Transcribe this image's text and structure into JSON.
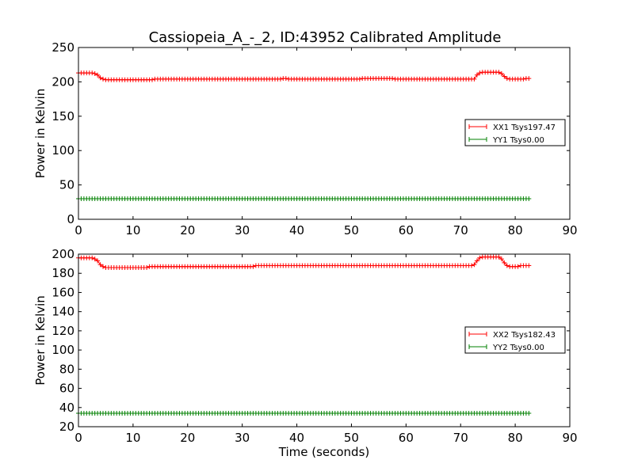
{
  "figure": {
    "title": "Cassiopeia_A_-_2, ID:43952 Calibrated Amplitude"
  },
  "chart_data": [
    {
      "type": "line",
      "title": "Cassiopeia_A_-_2, ID:43952 Calibrated Amplitude",
      "xlabel": "",
      "ylabel": "Power in Kelvin",
      "xlim": [
        0,
        90
      ],
      "ylim": [
        0,
        250
      ],
      "xticks": [
        0,
        10,
        20,
        30,
        40,
        50,
        60,
        70,
        80,
        90
      ],
      "yticks": [
        0,
        50,
        100,
        150,
        200,
        250
      ],
      "grid": false,
      "legend_position": "right",
      "marker": "+",
      "x_start": 0,
      "x_step": 0.5,
      "series": [
        {
          "name": "XX1 Tsys197.47",
          "color": "#ff0000",
          "values": [
            213,
            213,
            213,
            213,
            213,
            213,
            212,
            210,
            206,
            204,
            203,
            203,
            203,
            203,
            203,
            203,
            203,
            203,
            203,
            203,
            203,
            203,
            203,
            203,
            203,
            203,
            203,
            203,
            204,
            204,
            204,
            204,
            204,
            204,
            204,
            204,
            204,
            204,
            204,
            204,
            204,
            204,
            204,
            204,
            204,
            204,
            204,
            204,
            204,
            204,
            204,
            204,
            204,
            204,
            204,
            204,
            204,
            204,
            204,
            204,
            204,
            204,
            204,
            204,
            204,
            204,
            204,
            204,
            204,
            204,
            204,
            204,
            204,
            204,
            204,
            205,
            205,
            204,
            204,
            204,
            204,
            204,
            204,
            204,
            204,
            204,
            204,
            204,
            204,
            204,
            204,
            204,
            204,
            204,
            204,
            204,
            204,
            204,
            204,
            204,
            204,
            204,
            204,
            204,
            205,
            205,
            205,
            205,
            205,
            205,
            205,
            205,
            205,
            205,
            205,
            205,
            204,
            204,
            204,
            204,
            204,
            204,
            204,
            204,
            204,
            204,
            204,
            204,
            204,
            204,
            204,
            204,
            204,
            204,
            204,
            204,
            204,
            204,
            204,
            204,
            204,
            204,
            204,
            204,
            204,
            204,
            210,
            213,
            214,
            214,
            214,
            214,
            214,
            214,
            214,
            212,
            208,
            205,
            204,
            204,
            204,
            204,
            204,
            204,
            205,
            205
          ]
        },
        {
          "name": "YY1 Tsys0.00",
          "color": "#008000",
          "constant": 30
        }
      ]
    },
    {
      "type": "line",
      "title": "",
      "xlabel": "Time (seconds)",
      "ylabel": "Power in Kelvin",
      "xlim": [
        0,
        90
      ],
      "ylim": [
        20,
        200
      ],
      "xticks": [
        0,
        10,
        20,
        30,
        40,
        50,
        60,
        70,
        80,
        90
      ],
      "yticks": [
        20,
        40,
        60,
        80,
        100,
        120,
        140,
        160,
        180,
        200
      ],
      "grid": false,
      "legend_position": "right",
      "marker": "+",
      "x_start": 0,
      "x_step": 0.5,
      "series": [
        {
          "name": "XX2 Tsys182.43",
          "color": "#ff0000",
          "values": [
            196,
            196,
            196,
            196,
            196,
            196,
            195,
            193,
            189,
            187,
            186,
            186,
            186,
            186,
            186,
            186,
            186,
            186,
            186,
            186,
            186,
            186,
            186,
            186,
            186,
            186,
            187,
            187,
            187,
            187,
            187,
            187,
            187,
            187,
            187,
            187,
            187,
            187,
            187,
            187,
            187,
            187,
            187,
            187,
            187,
            187,
            187,
            187,
            187,
            187,
            187,
            187,
            187,
            187,
            187,
            187,
            187,
            187,
            187,
            187,
            187,
            187,
            187,
            187,
            187,
            188,
            188,
            188,
            188,
            188,
            188,
            188,
            188,
            188,
            188,
            188,
            188,
            188,
            188,
            188,
            188,
            188,
            188,
            188,
            188,
            188,
            188,
            188,
            188,
            188,
            188,
            188,
            188,
            188,
            188,
            188,
            188,
            188,
            188,
            188,
            188,
            188,
            188,
            188,
            188,
            188,
            188,
            188,
            188,
            188,
            188,
            188,
            188,
            188,
            188,
            188,
            188,
            188,
            188,
            188,
            188,
            188,
            188,
            188,
            188,
            188,
            188,
            188,
            188,
            188,
            188,
            188,
            188,
            188,
            188,
            188,
            188,
            188,
            188,
            188,
            188,
            188,
            188,
            188,
            188,
            189,
            193,
            196,
            197,
            197,
            197,
            197,
            197,
            197,
            197,
            195,
            191,
            188,
            187,
            187,
            187,
            187,
            188,
            188,
            188,
            188
          ]
        },
        {
          "name": "YY2 Tsys0.00",
          "color": "#008000",
          "constant": 34
        }
      ]
    }
  ]
}
